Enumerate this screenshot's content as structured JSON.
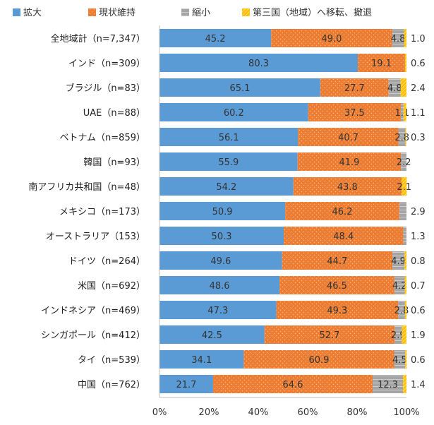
{
  "chart_data": {
    "type": "bar",
    "orientation": "horizontal",
    "stacked": true,
    "categories": [
      "全地域計（n=7,347）",
      "インド（n=309）",
      "ブラジル（n=83）",
      "UAE（n=88）",
      "ベトナム（n=859）",
      "韓国（n=93）",
      "南アフリカ共和国（n=48）",
      "メキシコ（n=173）",
      "オーストラリア（153）",
      "ドイツ（n=264）",
      "米国（n=692）",
      "インドネシア（n=469）",
      "シンガポール（n=412）",
      "タイ（n=539）",
      "中国（n=762）"
    ],
    "series": [
      {
        "name": "拡大",
        "color": "#5b9bd5",
        "values": [
          45.2,
          80.3,
          65.1,
          60.2,
          56.1,
          55.9,
          54.2,
          50.9,
          50.3,
          49.6,
          48.6,
          47.3,
          42.5,
          34.1,
          21.7
        ],
        "labels": [
          "45.2",
          "80.3",
          "65.1",
          "60.2",
          "56.1",
          "55.9",
          "54.2",
          "50.9",
          "50.3",
          "49.6",
          "48.6",
          "47.3",
          "42.5",
          "34.1",
          "21.7"
        ]
      },
      {
        "name": "現状維持",
        "color": "#ed7d31",
        "values": [
          49.0,
          19.1,
          27.7,
          37.5,
          40.7,
          41.9,
          43.8,
          46.2,
          48.4,
          44.7,
          46.5,
          49.3,
          52.7,
          60.9,
          64.6
        ],
        "labels": [
          "49.0",
          "19.1",
          "27.7",
          "37.5",
          "40.7",
          "41.9",
          "43.8",
          "46.2",
          "48.4",
          "44.7",
          "46.5",
          "49.3",
          "52.7",
          "60.9",
          "64.6"
        ]
      },
      {
        "name": "縮小",
        "color": "#a5a5a5",
        "values": [
          4.8,
          0.0,
          4.8,
          1.1,
          2.8,
          2.2,
          0.0,
          2.9,
          1.3,
          4.9,
          4.2,
          2.8,
          2.9,
          4.5,
          12.3
        ],
        "labels": [
          "4.8",
          "",
          "4.8",
          "1.1",
          "2.8",
          "2.2",
          "",
          "",
          "",
          "4.9",
          "4.2",
          "2.8",
          "2.9",
          "4.5",
          "12.3"
        ]
      },
      {
        "name": "第三国（地域）へ移転、撤退",
        "color": "#ffc000",
        "values": [
          1.0,
          0.6,
          2.4,
          1.1,
          0.3,
          0.0,
          2.1,
          0.0,
          0.0,
          0.8,
          0.7,
          0.6,
          1.9,
          0.6,
          1.4
        ],
        "labels": [
          "",
          "",
          "",
          "",
          "",
          "",
          "2.1",
          "",
          "",
          "",
          "",
          "",
          "",
          "",
          ""
        ]
      }
    ],
    "outside_labels": [
      "1.0",
      "0.6",
      "2.4",
      "1.1",
      "0.3",
      "",
      "",
      "2.9",
      "1.3",
      "0.8",
      "0.7",
      "0.6",
      "1.9",
      "0.6",
      "1.4"
    ],
    "xaxis": {
      "min": 0,
      "max": 100,
      "ticks": [
        "0%",
        "20%",
        "40%",
        "60%",
        "80%",
        "100%"
      ]
    },
    "legend_position": "top",
    "grid": false
  }
}
